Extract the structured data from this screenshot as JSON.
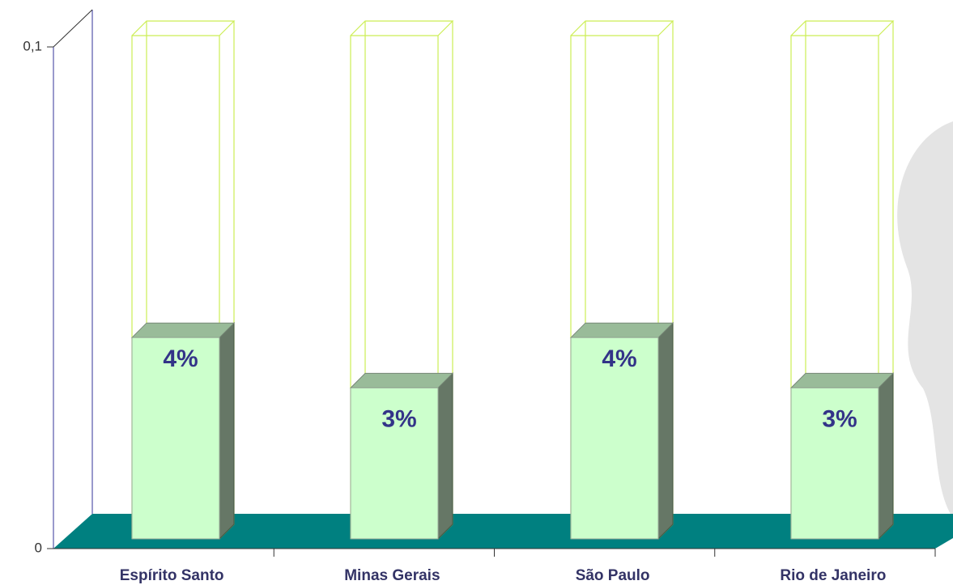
{
  "chart_data": {
    "type": "bar3d",
    "categories": [
      "Espírito Santo",
      "Minas Gerais",
      "São Paulo",
      "Rio de Janeiro"
    ],
    "values": [
      0.04,
      0.03,
      0.04,
      0.03
    ],
    "value_labels": [
      "4%",
      "3%",
      "4%",
      "3%"
    ],
    "color": "#ccffcc",
    "ylim": [
      0,
      0.1
    ],
    "yticks": [
      0,
      {
        "value": 0.1,
        "label": "0,1"
      }
    ]
  }
}
